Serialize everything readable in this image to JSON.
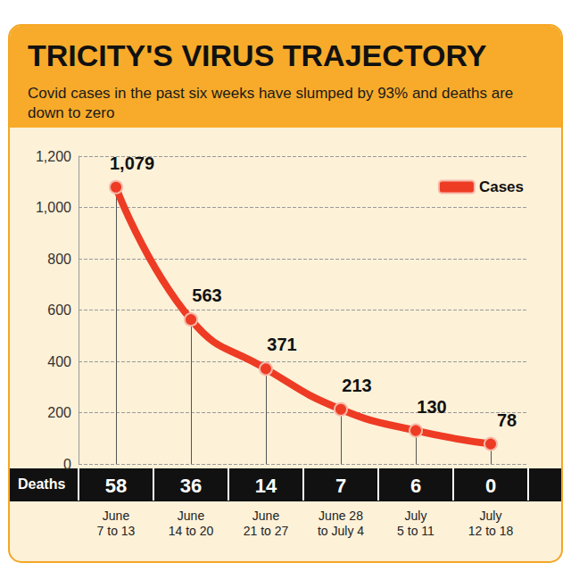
{
  "chart_data": {
    "type": "line",
    "title": "TRICITY'S VIRUS TRAJECTORY",
    "subtitle": "Covid cases in the past six weeks have slumped by 93% and deaths are down to zero",
    "categories": [
      "June\n7 to 13",
      "June\n14 to 20",
      "June\n21 to 27",
      "June 28\nto July 4",
      "July\n5 to 11",
      "July\n12 to 18"
    ],
    "series": [
      {
        "name": "Cases",
        "color": "#ee3b24",
        "marker": "circle",
        "line_style": "solid",
        "values": [
          1079,
          563,
          371,
          213,
          130,
          78
        ],
        "value_labels": [
          "1,079",
          "563",
          "371",
          "213",
          "130",
          "78"
        ]
      }
    ],
    "deaths": {
      "label": "Deaths",
      "values": [
        58,
        36,
        14,
        7,
        6,
        0
      ]
    },
    "ylim": [
      0,
      1200
    ],
    "yticks": [
      0,
      200,
      400,
      600,
      800,
      {
        "value": 1000,
        "label": "1,000"
      },
      {
        "value": 1200,
        "label": "1,200"
      }
    ],
    "grid": true,
    "legend": "upper right",
    "data_labels": true
  }
}
